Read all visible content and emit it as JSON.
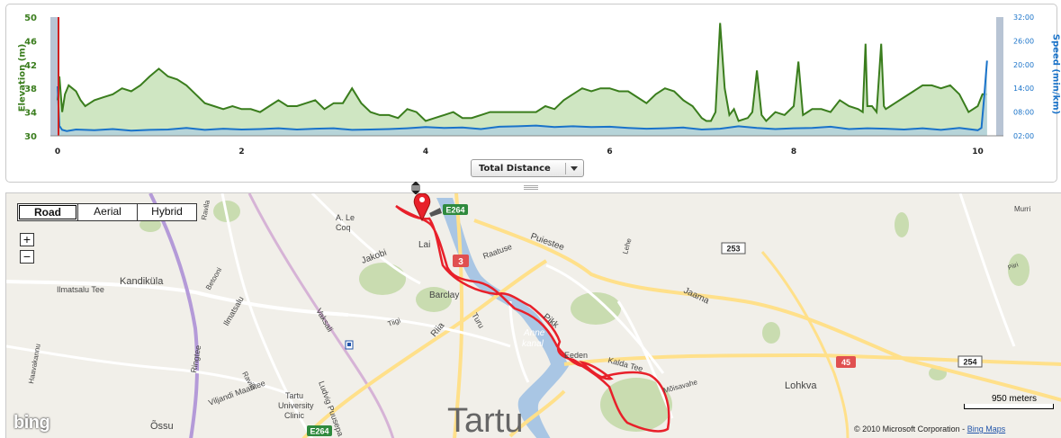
{
  "chart_data": {
    "type": "line",
    "xlabel": "Total Distance",
    "x_ticks": [
      "0",
      "2",
      "4",
      "6",
      "8",
      "10"
    ],
    "xlim": [
      0,
      10.2
    ],
    "y_left": {
      "label": "Elevation (m)",
      "ylim": [
        30,
        50
      ],
      "ticks": [
        "30",
        "34",
        "38",
        "42",
        "46",
        "50"
      ]
    },
    "y_right": {
      "label": "Speed (min/km)",
      "ylim": [
        2,
        32
      ],
      "ticks": [
        "02:00",
        "08:00",
        "14:00",
        "20:00",
        "26:00",
        "32:00"
      ]
    },
    "grid": false,
    "series": [
      {
        "name": "Elevation (m)",
        "axis": "left",
        "color": "#3a7d1d",
        "fill": "#cfe6c2",
        "x": [
          0.0,
          0.02,
          0.05,
          0.08,
          0.12,
          0.16,
          0.2,
          0.25,
          0.3,
          0.35,
          0.4,
          0.5,
          0.6,
          0.7,
          0.8,
          0.9,
          1.0,
          1.1,
          1.2,
          1.3,
          1.4,
          1.5,
          1.6,
          1.7,
          1.8,
          1.9,
          2.0,
          2.1,
          2.2,
          2.3,
          2.4,
          2.5,
          2.6,
          2.7,
          2.8,
          2.9,
          3.0,
          3.1,
          3.2,
          3.3,
          3.4,
          3.5,
          3.6,
          3.7,
          3.8,
          3.9,
          4.0,
          4.1,
          4.2,
          4.3,
          4.4,
          4.5,
          4.6,
          4.7,
          4.8,
          4.9,
          5.0,
          5.1,
          5.2,
          5.3,
          5.4,
          5.5,
          5.6,
          5.7,
          5.8,
          5.9,
          6.0,
          6.1,
          6.2,
          6.3,
          6.4,
          6.5,
          6.6,
          6.7,
          6.8,
          6.9,
          7.0,
          7.05,
          7.1,
          7.15,
          7.2,
          7.25,
          7.3,
          7.35,
          7.4,
          7.5,
          7.55,
          7.6,
          7.65,
          7.7,
          7.8,
          7.9,
          8.0,
          8.05,
          8.1,
          8.15,
          8.2,
          8.3,
          8.4,
          8.5,
          8.6,
          8.7,
          8.75,
          8.78,
          8.8,
          8.85,
          8.9,
          8.95,
          8.98,
          9.0,
          9.05,
          9.1,
          9.2,
          9.3,
          9.4,
          9.5,
          9.6,
          9.7,
          9.8,
          9.9,
          10.0,
          10.05,
          10.1
        ],
        "values": [
          36.0,
          40.0,
          34.0,
          37.0,
          38.5,
          38.0,
          37.5,
          36.0,
          35.0,
          35.5,
          36.0,
          36.5,
          37.0,
          38.0,
          37.5,
          38.5,
          40.0,
          41.3,
          40.0,
          39.5,
          38.5,
          37.0,
          35.5,
          35.0,
          34.5,
          35.0,
          34.5,
          34.5,
          34.0,
          35.0,
          36.0,
          35.0,
          35.0,
          35.5,
          36.0,
          34.5,
          35.5,
          35.5,
          38.0,
          35.5,
          34.0,
          33.5,
          33.5,
          33.0,
          34.5,
          34.0,
          32.5,
          33.0,
          33.5,
          34.0,
          33.0,
          33.0,
          33.5,
          34.0,
          34.0,
          34.0,
          34.0,
          34.0,
          34.0,
          35.0,
          34.5,
          36.0,
          37.0,
          38.0,
          37.5,
          38.0,
          38.0,
          37.5,
          37.5,
          36.5,
          35.5,
          37.0,
          38.0,
          37.5,
          36.0,
          35.0,
          33.0,
          32.5,
          32.5,
          34.0,
          49.0,
          38.0,
          33.5,
          34.5,
          32.5,
          33.0,
          34.0,
          41.0,
          33.5,
          32.5,
          34.0,
          33.5,
          35.0,
          42.5,
          33.5,
          34.0,
          34.5,
          34.5,
          34.0,
          36.0,
          35.0,
          34.5,
          34.0,
          45.5,
          35.0,
          35.0,
          34.0,
          45.5,
          35.0,
          34.5,
          35.0,
          35.5,
          36.5,
          37.5,
          38.5,
          38.5,
          38.0,
          38.5,
          37.0,
          34.0,
          35.0,
          37.0,
          37.0
        ]
      },
      {
        "name": "Speed (min/km)",
        "axis": "right",
        "color": "#1a73c9",
        "fill": "#b3d1dc",
        "x": [
          0.0,
          0.02,
          0.05,
          0.1,
          0.2,
          0.4,
          0.6,
          0.8,
          1.0,
          1.2,
          1.4,
          1.6,
          1.8,
          2.0,
          2.2,
          2.4,
          2.6,
          2.8,
          3.0,
          3.2,
          3.4,
          3.6,
          3.8,
          4.0,
          4.2,
          4.4,
          4.6,
          4.8,
          5.0,
          5.2,
          5.4,
          5.6,
          5.8,
          6.0,
          6.2,
          6.4,
          6.6,
          6.8,
          7.0,
          7.2,
          7.4,
          7.6,
          7.8,
          8.0,
          8.2,
          8.4,
          8.6,
          8.8,
          9.0,
          9.2,
          9.4,
          9.6,
          9.8,
          10.0,
          10.04,
          10.07,
          10.1
        ],
        "values": [
          14.5,
          4.5,
          3.5,
          3.2,
          3.6,
          3.4,
          3.7,
          3.3,
          3.5,
          3.6,
          4.0,
          3.5,
          3.8,
          3.6,
          3.7,
          3.9,
          3.6,
          3.8,
          3.9,
          3.5,
          3.6,
          3.7,
          3.9,
          4.2,
          4.0,
          4.1,
          3.7,
          4.3,
          4.4,
          4.6,
          4.2,
          4.4,
          4.2,
          4.3,
          4.0,
          3.8,
          3.9,
          4.1,
          3.6,
          3.8,
          4.4,
          4.0,
          3.7,
          3.9,
          4.0,
          4.3,
          3.7,
          3.9,
          3.8,
          3.6,
          3.9,
          3.5,
          4.0,
          3.4,
          4.0,
          12.0,
          21.0
        ]
      }
    ]
  },
  "chart_controls": {
    "select_label": "Total Distance"
  },
  "map": {
    "type_buttons": [
      "Road",
      "Aerial",
      "Hybrid"
    ],
    "selected_type": "Road",
    "zoom_in": "+",
    "zoom_out": "−",
    "scale_label": "950 meters",
    "copyright": "© 2010 Microsoft Corporation - ",
    "copyright_link": "Bing Maps",
    "logo": "bing",
    "labels": {
      "tartu": "Tartu",
      "kandikula": "Kandiküla",
      "ilmatsalu_tee": "Ilmatsalu Tee",
      "betooni": "Betooni",
      "ilmatsalu": "Ilmatsalu",
      "vaksali": "Vaksali",
      "ringtee": "Ringtee",
      "ravila1": "Ravila",
      "ravila2": "Ravila",
      "ravila3": "Ravila",
      "viljandi": "Viljandi Maantee",
      "ludvig": "Ludvig Puusepa",
      "tartu_clinic": "Tartu\nUniversity\nClinic",
      "ossu": "Õssu",
      "haavakannu": "Haavakannu",
      "jakobi": "Jakobi",
      "alecoq": "A. Le\nCoq",
      "lai": "Lai",
      "barclay": "Barclay",
      "riia": "Riia",
      "turu": "Turu",
      "tiigi": "Tiigi",
      "raatuse": "Raatuse",
      "puiestee": "Puiestee",
      "lehe": "Lehe",
      "pikk": "Pikk",
      "anne_kanal": "Anne\nkanal",
      "eeden": "Eeden",
      "kalda_tee": "Kalda Tee",
      "moisavahe": "Mõisavahe",
      "jaama": "Jaama",
      "lohkva": "Lohkva",
      "murri": "Murri",
      "piiri": "Piiri"
    },
    "road_shields": {
      "e264_top": "E264",
      "e264_bottom": "E264",
      "r3": "3",
      "r253": "253",
      "r45": "45",
      "r254": "254"
    },
    "route_color": "#e8202a"
  }
}
